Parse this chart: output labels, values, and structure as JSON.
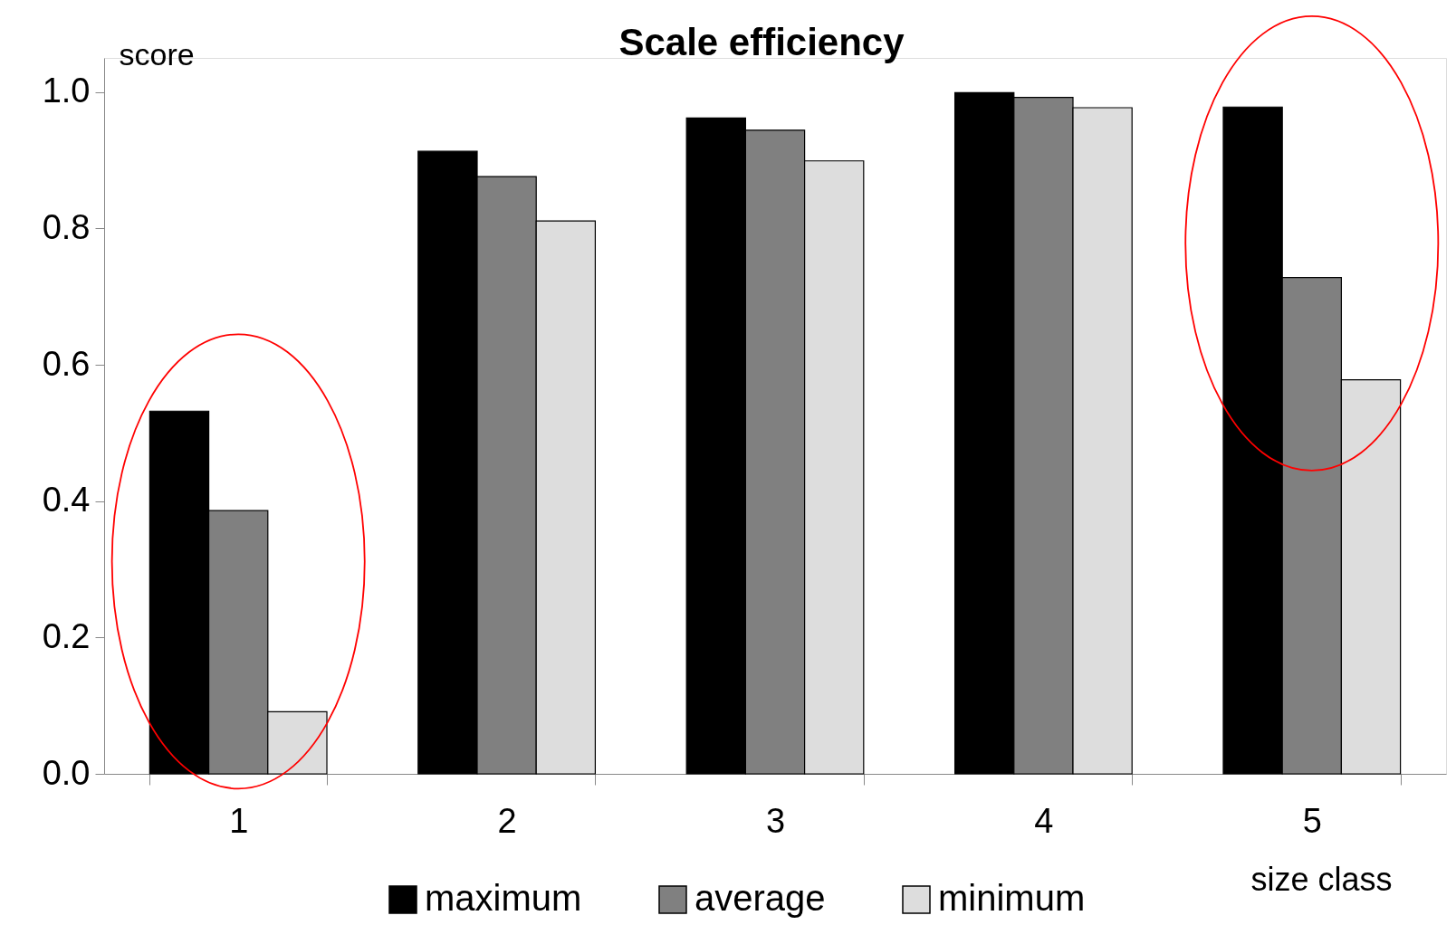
{
  "chart_data": {
    "type": "bar",
    "title": "Scale efficiency",
    "ylabel": "score",
    "xlabel": "size class",
    "categories": [
      "1",
      "2",
      "3",
      "4",
      "5"
    ],
    "series": [
      {
        "name": "maximum",
        "color": "#000000",
        "values": [
          0.532,
          0.913,
          0.962,
          0.999,
          0.978
        ]
      },
      {
        "name": "average",
        "color": "#808080",
        "values": [
          0.386,
          0.876,
          0.944,
          0.992,
          0.728
        ]
      },
      {
        "name": "minimum",
        "color": "#dddddd",
        "values": [
          0.091,
          0.811,
          0.899,
          0.977,
          0.578
        ]
      }
    ],
    "ylim": [
      0,
      1.05
    ],
    "yticks": [
      {
        "value": 0,
        "label": "0.0"
      },
      0.2,
      0.4,
      0.6,
      0.8,
      {
        "value": 1.0,
        "label": "1.0"
      }
    ],
    "grid": false,
    "legend": "bottom"
  }
}
